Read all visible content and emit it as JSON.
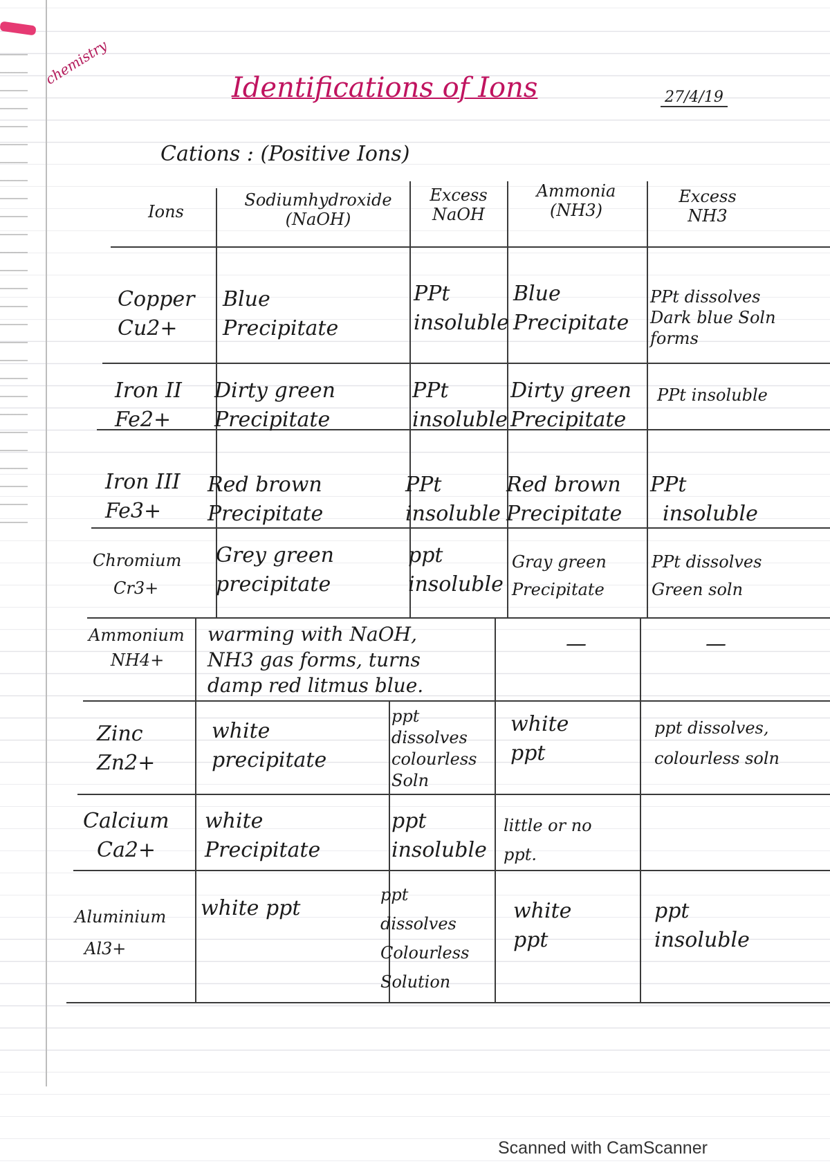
{
  "notebook": {
    "subject_tag": "chemistry",
    "title": "Identifications of Ions",
    "date": "27/4/19",
    "section_heading": "Cations : (Positive Ions)"
  },
  "table": {
    "headers": [
      [
        "Ions"
      ],
      [
        "Sodiumhydroxide",
        "(NaOH)"
      ],
      [
        "Excess",
        "NaOH"
      ],
      [
        "Ammonia",
        "(NH3)"
      ],
      [
        "Excess",
        "NH3"
      ]
    ],
    "rows": [
      {
        "ion": [
          "Copper",
          "Cu2+"
        ],
        "naoh": [
          "Blue",
          "Precipitate"
        ],
        "excess_naoh": [
          "PPt",
          "insoluble"
        ],
        "ammonia": [
          "Blue",
          "Precipitate"
        ],
        "excess_nh3": [
          "PPt dissolves",
          "Dark blue Soln",
          "forms"
        ]
      },
      {
        "ion": [
          "Iron II",
          "Fe2+"
        ],
        "naoh": [
          "Dirty green",
          "Precipitate"
        ],
        "excess_naoh": [
          "PPt",
          "insoluble"
        ],
        "ammonia": [
          "Dirty green",
          "Precipitate"
        ],
        "excess_nh3": [
          "PPt insoluble"
        ]
      },
      {
        "ion": [
          "Iron III",
          "Fe3+"
        ],
        "naoh": [
          "Red brown",
          "Precipitate"
        ],
        "excess_naoh": [
          "PPt",
          "insoluble"
        ],
        "ammonia": [
          "Red brown",
          "Precipitate"
        ],
        "excess_nh3": [
          "PPt",
          "insoluble"
        ]
      },
      {
        "ion": [
          "Chromium",
          "Cr3+"
        ],
        "naoh": [
          "Grey green",
          "precipitate"
        ],
        "excess_naoh": [
          "ppt",
          "insoluble"
        ],
        "ammonia": [
          "Gray green",
          "Precipitate"
        ],
        "excess_nh3": [
          "PPt dissolves",
          "Green soln"
        ]
      },
      {
        "ion": [
          "Ammonium",
          "NH4+"
        ],
        "naoh": [
          "warming with NaOH,",
          "NH3 gas forms, turns",
          "damp red litmus blue."
        ],
        "excess_naoh": [],
        "ammonia": [
          "—"
        ],
        "excess_nh3": [
          "—"
        ]
      },
      {
        "ion": [
          "Zinc",
          "Zn2+"
        ],
        "naoh": [
          "white",
          "precipitate"
        ],
        "excess_naoh": [
          "ppt",
          "dissolves",
          "colourless",
          "Soln"
        ],
        "ammonia": [
          "white",
          "ppt"
        ],
        "excess_nh3": [
          "ppt dissolves,",
          "colourless soln"
        ]
      },
      {
        "ion": [
          "Calcium",
          "Ca2+"
        ],
        "naoh": [
          "white",
          "Precipitate"
        ],
        "excess_naoh": [
          "ppt",
          "insoluble"
        ],
        "ammonia": [
          "little or no",
          "ppt."
        ],
        "excess_nh3": []
      },
      {
        "ion": [
          "Aluminium",
          "Al3+"
        ],
        "naoh": [
          "white ppt"
        ],
        "excess_naoh": [
          "ppt",
          "dissolves",
          "Colourless",
          "Solution"
        ],
        "ammonia": [
          "white",
          "ppt"
        ],
        "excess_nh3": [
          "ppt",
          "insoluble"
        ]
      }
    ]
  },
  "footer": "Scanned with CamScanner"
}
